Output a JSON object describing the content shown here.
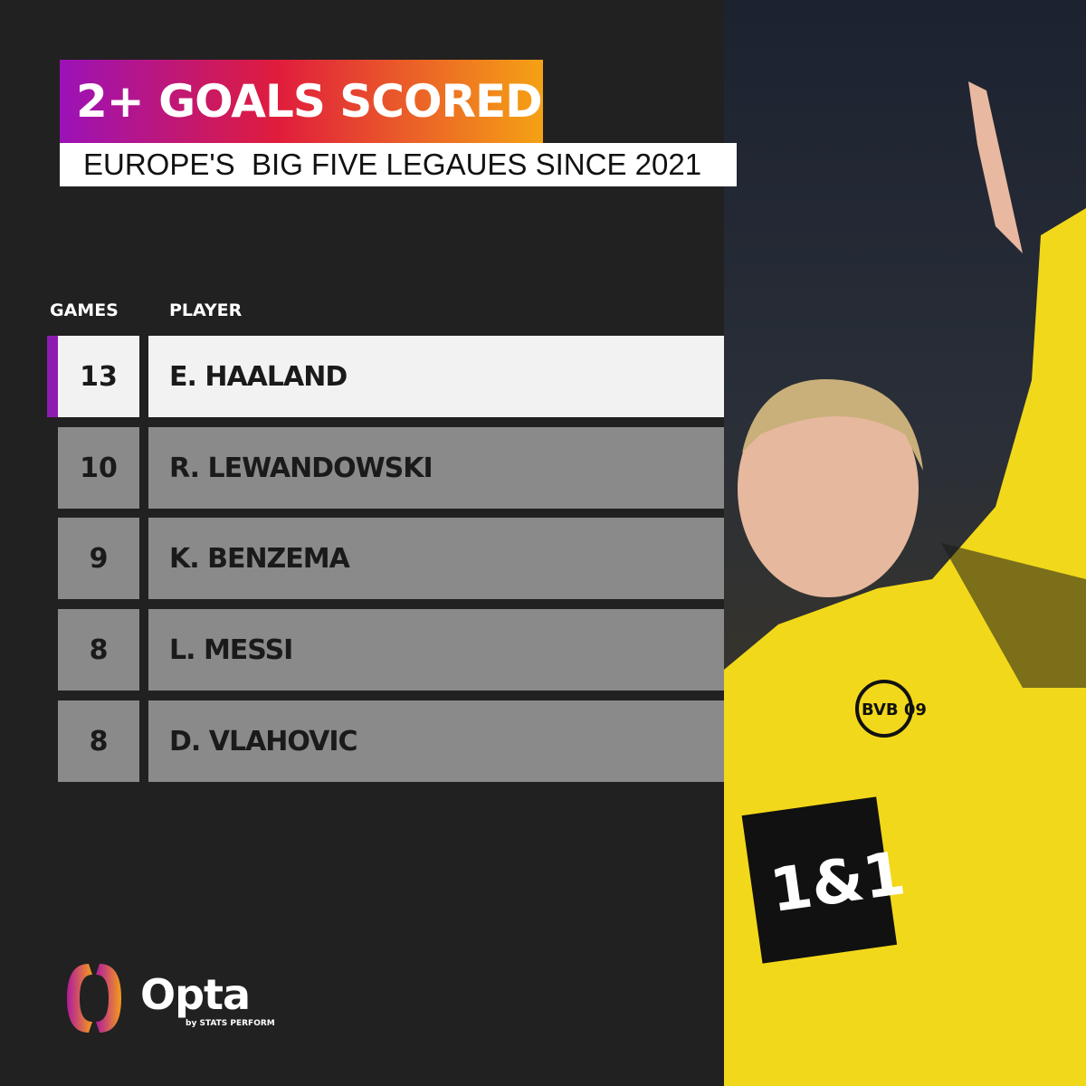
{
  "title": "2+ GOALS SCORED",
  "subtitle": "EUROPE'S  BIG FIVE LEGAUES SINCE 2021",
  "colors": {
    "background": "#212121",
    "title_gradient": [
      "#9b12b8",
      "#e01c3c",
      "#f5a214"
    ],
    "highlight_accent": "#8e1cb0",
    "row_gray": "#8a8a8a"
  },
  "chart_data": {
    "type": "table",
    "columns": [
      "GAMES",
      "PLAYER"
    ],
    "rows": [
      {
        "games": "13",
        "player": "E. HAALAND",
        "highlighted": true
      },
      {
        "games": "10",
        "player": "R. LEWANDOWSKI"
      },
      {
        "games": "9",
        "player": "K. BENZEMA"
      },
      {
        "games": "8",
        "player": "L. MESSI"
      },
      {
        "games": "8",
        "player": "D. VLAHOVIC"
      }
    ]
  },
  "brand": {
    "name": "Opta",
    "tagline": "by STATS PERFORM"
  },
  "photo": {
    "sponsor": "1&1",
    "crest": "BVB 09"
  }
}
